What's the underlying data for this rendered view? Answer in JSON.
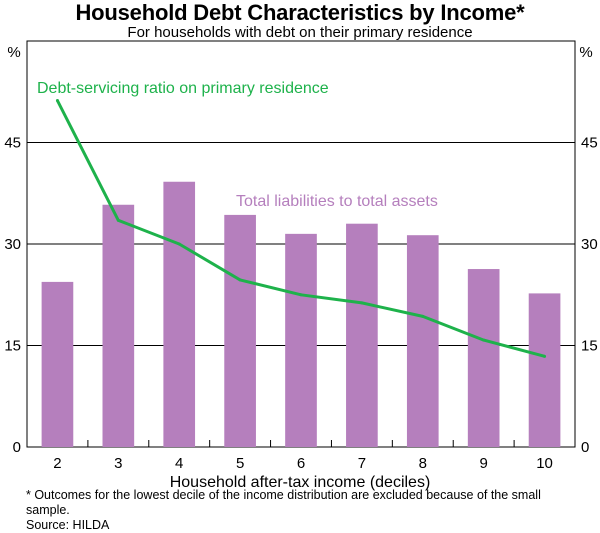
{
  "chart_data": {
    "type": "bar",
    "title": "Household Debt Characteristics by Income*",
    "subtitle": "For households with debt on their primary residence",
    "xlabel": "Household after-tax income (deciles)",
    "ylabel_left": "%",
    "ylabel_right": "%",
    "categories": [
      "2",
      "3",
      "4",
      "5",
      "6",
      "7",
      "8",
      "9",
      "10"
    ],
    "ylim": [
      0,
      60
    ],
    "yticks": [
      0,
      15,
      30,
      45
    ],
    "grid": true,
    "series": [
      {
        "name": "Total liabilities to total assets",
        "type": "bar",
        "color": "#b57fbd",
        "values": [
          24.4,
          35.8,
          39.2,
          34.3,
          31.5,
          33.0,
          31.3,
          26.3,
          22.7
        ]
      },
      {
        "name": "Debt-servicing ratio on primary residence",
        "type": "line",
        "color": "#1eb24b",
        "values": [
          51.2,
          33.5,
          30.0,
          24.7,
          22.5,
          21.3,
          19.3,
          15.8,
          13.4
        ]
      }
    ]
  },
  "footnote": "* Outcomes for the lowest decile of the income distribution are excluded because of the small sample.",
  "source": "Source: HILDA"
}
